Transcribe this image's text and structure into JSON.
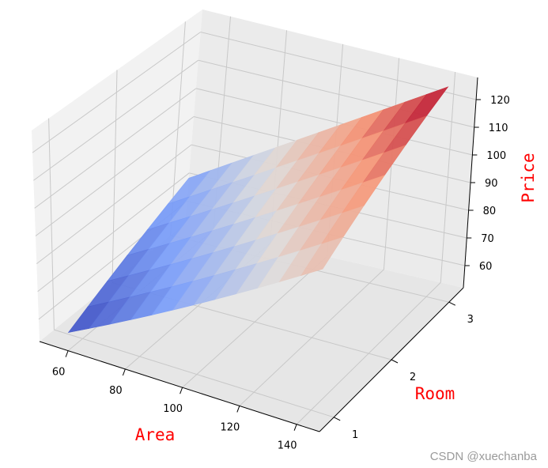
{
  "chart_data": {
    "type": "surface3d",
    "title": "",
    "xlabel": "Area",
    "ylabel": "Room",
    "zlabel": "Price",
    "x_ticks": [
      "60",
      "80",
      "100",
      "120",
      "140"
    ],
    "y_ticks": [
      "1",
      "2",
      "3"
    ],
    "z_ticks": [
      "60",
      "70",
      "80",
      "90",
      "100",
      "110",
      "120"
    ],
    "xlim": [
      50,
      148
    ],
    "ylim": [
      0.75,
      3.25
    ],
    "zlim": [
      52,
      128
    ],
    "colormap": "coolwarm",
    "label_color": "#ff0000",
    "surface": {
      "x": [
        55,
        143
      ],
      "y": [
        1,
        3
      ],
      "z": [
        [
          52.6,
          97.4
        ],
        [
          73.6,
          127.3
        ]
      ]
    }
  },
  "watermark": "CSDN @xuechanba"
}
